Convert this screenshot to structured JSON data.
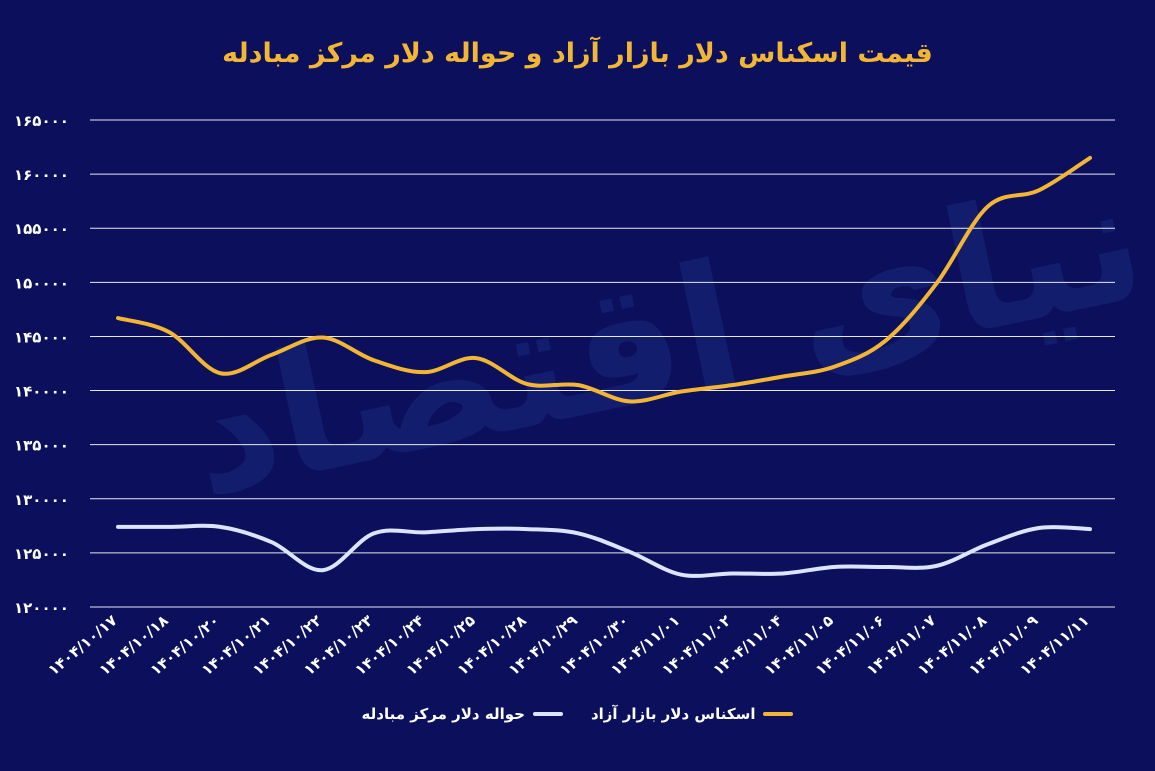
{
  "chart_data": {
    "type": "line",
    "title": "قیمت اسکناس دلار بازار آزاد و حواله دلار مرکز مبادله",
    "categories": [
      "۱۴۰۴/۱۰/۱۷",
      "۱۴۰۴/۱۰/۱۸",
      "۱۴۰۴/۱۰/۲۰",
      "۱۴۰۴/۱۰/۲۱",
      "۱۴۰۴/۱۰/۲۲",
      "۱۴۰۴/۱۰/۲۳",
      "۱۴۰۴/۱۰/۲۴",
      "۱۴۰۴/۱۰/۲۵",
      "۱۴۰۴/۱۰/۲۸",
      "۱۴۰۴/۱۰/۲۹",
      "۱۴۰۴/۱۰/۳۰",
      "۱۴۰۴/۱۱/۰۱",
      "۱۴۰۴/۱۱/۰۲",
      "۱۴۰۴/۱۱/۰۴",
      "۱۴۰۴/۱۱/۰۵",
      "۱۴۰۴/۱۱/۰۶",
      "۱۴۰۴/۱۱/۰۷",
      "۱۴۰۴/۱۱/۰۸",
      "۱۴۰۴/۱۱/۰۹",
      "۱۴۰۴/۱۱/۱۱"
    ],
    "series": [
      {
        "name": "اسکناس دلار بازار آزاد",
        "color": "#f2b634",
        "values": [
          146700,
          145400,
          141600,
          143300,
          144900,
          142800,
          141700,
          143000,
          140600,
          140500,
          139000,
          139900,
          140500,
          141300,
          142200,
          144600,
          149900,
          157000,
          158500,
          161500
        ]
      },
      {
        "name": "حواله دلار مرکز مبادله",
        "color": "#dde4ff",
        "values": [
          127400,
          127400,
          127400,
          126000,
          123400,
          126800,
          126900,
          127200,
          127200,
          126800,
          125100,
          123000,
          123100,
          123100,
          123700,
          123700,
          123800,
          125800,
          127300,
          127200
        ]
      }
    ],
    "yticks": [
      "۱۲۰۰۰۰",
      "۱۲۵۰۰۰",
      "۱۳۰۰۰۰",
      "۱۳۵۰۰۰",
      "۱۴۰۰۰۰",
      "۱۴۵۰۰۰",
      "۱۵۰۰۰۰",
      "۱۵۵۰۰۰",
      "۱۶۰۰۰۰",
      "۱۶۵۰۰۰"
    ],
    "ylim": [
      120000,
      165000
    ],
    "grid": true,
    "legend_position": "bottom"
  },
  "watermark": "دنیای اقتصاد",
  "colors": {
    "background": "#0b0f5c",
    "grid": "#ffffff",
    "text": "#ffffff"
  }
}
